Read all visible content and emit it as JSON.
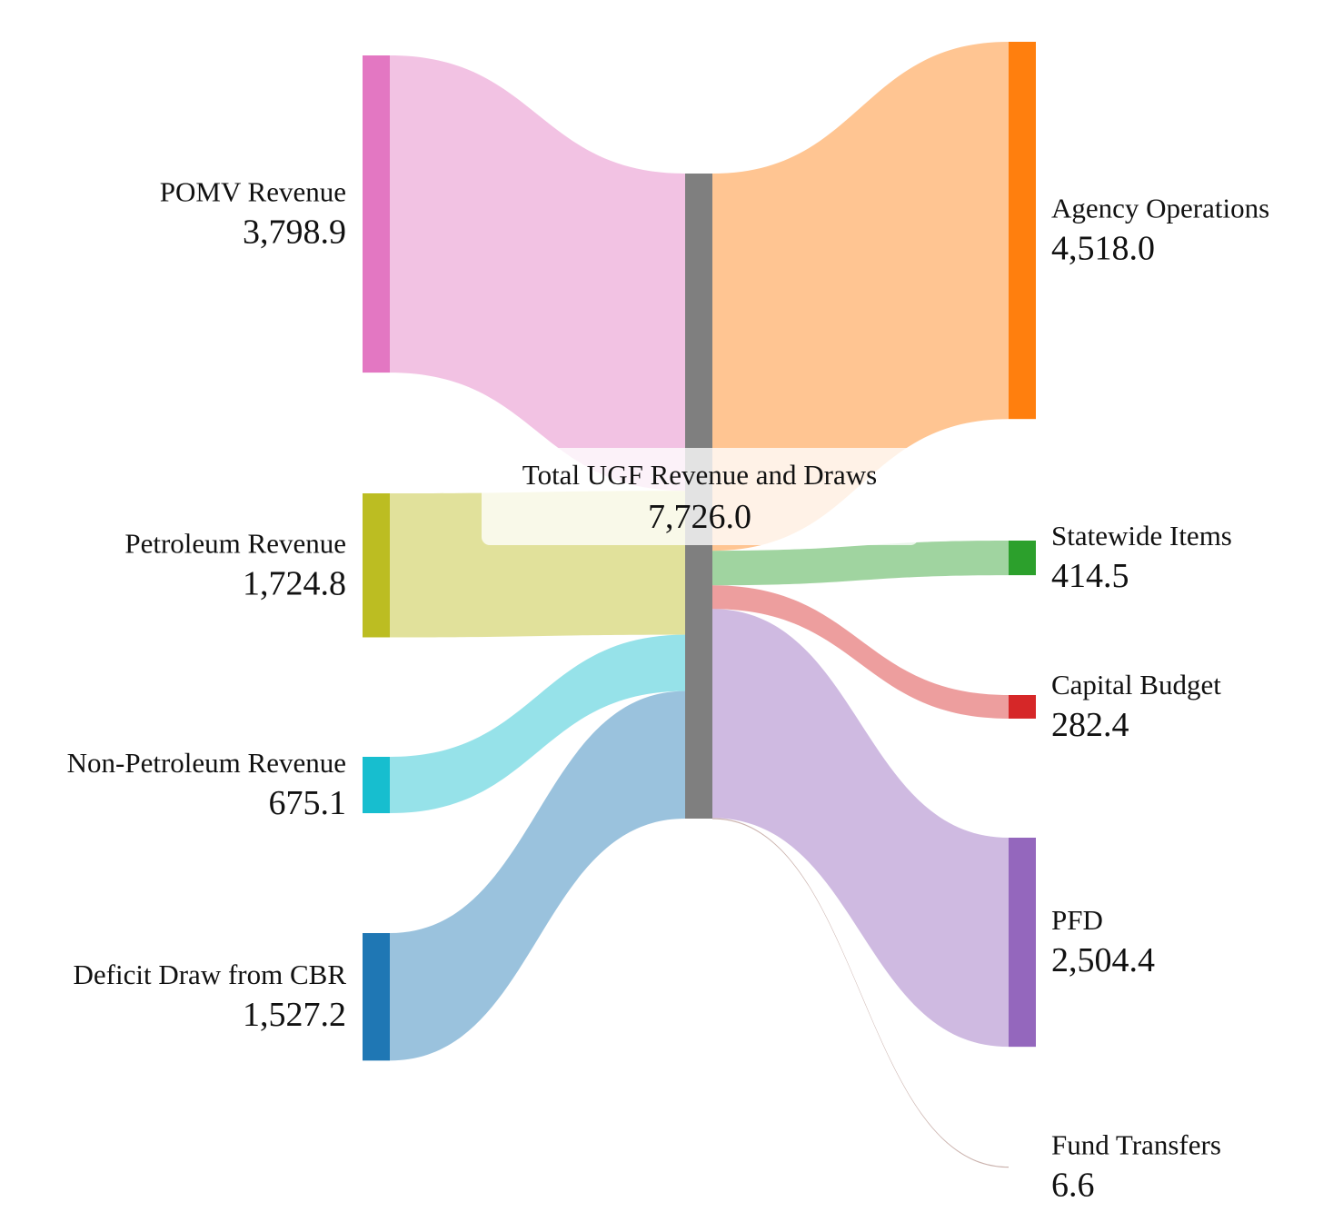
{
  "chart_data": {
    "type": "sankey",
    "title": "",
    "center": {
      "name": "Total UGF Revenue and Draws",
      "value": "7,726.0",
      "amount": 7726.0,
      "color": "#7f7f7f"
    },
    "sources": [
      {
        "name": "POMV Revenue",
        "value": "3,798.9",
        "amount": 3798.9,
        "color": "#e377c2"
      },
      {
        "name": "Petroleum Revenue",
        "value": "1,724.8",
        "amount": 1724.8,
        "color": "#bcbd22"
      },
      {
        "name": "Non-Petroleum Revenue",
        "value": "675.1",
        "amount": 675.1,
        "color": "#17becf"
      },
      {
        "name": "Deficit Draw from CBR",
        "value": "1,527.2",
        "amount": 1527.2,
        "color": "#1f77b4"
      }
    ],
    "targets": [
      {
        "name": "Agency Operations",
        "value": "4,518.0",
        "amount": 4518.0,
        "color": "#ff7f0e"
      },
      {
        "name": "Statewide Items",
        "value": "414.5",
        "amount": 414.5,
        "color": "#2ca02c"
      },
      {
        "name": "Capital Budget",
        "value": "282.4",
        "amount": 282.4,
        "color": "#d62728"
      },
      {
        "name": "PFD",
        "value": "2,504.4",
        "amount": 2504.4,
        "color": "#9467bd"
      },
      {
        "name": "Fund Transfers",
        "value": "6.6",
        "amount": 6.6,
        "color": "#8c564b"
      }
    ]
  }
}
